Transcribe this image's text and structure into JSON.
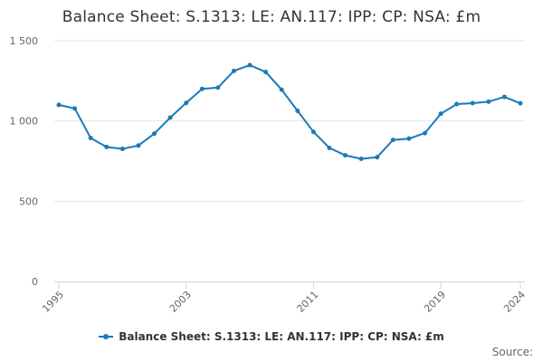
{
  "chart_data": {
    "type": "line",
    "title": "Balance Sheet: S.1313: LE: AN.117: IPP: CP: NSA: £m",
    "xlabel": "",
    "ylabel": "",
    "x": [
      1995,
      1996,
      1997,
      1998,
      1999,
      2000,
      2001,
      2002,
      2003,
      2004,
      2005,
      2006,
      2007,
      2008,
      2009,
      2010,
      2011,
      2012,
      2013,
      2014,
      2015,
      2016,
      2017,
      2018,
      2019,
      2020,
      2021,
      2022,
      2023,
      2024
    ],
    "x_ticks": [
      "1995",
      "2003",
      "2011",
      "2019",
      "2024"
    ],
    "ylim": [
      0,
      1500
    ],
    "y_ticks": [
      0,
      500,
      1000,
      1500
    ],
    "y_tick_labels": [
      "0",
      "500",
      "1 000",
      "1 500"
    ],
    "grid": true,
    "legend_position": "bottom-center",
    "series": [
      {
        "name": "Balance Sheet: S.1313: LE: AN.117: IPP: CP: NSA: £m",
        "color": "#1a7ab8",
        "values": [
          1100,
          1078,
          894,
          838,
          826,
          847,
          921,
          1021,
          1112,
          1200,
          1208,
          1312,
          1348,
          1305,
          1195,
          1063,
          932,
          832,
          786,
          764,
          774,
          882,
          890,
          924,
          1045,
          1105,
          1111,
          1120,
          1150,
          1110
        ]
      }
    ]
  },
  "footer": {
    "source_label": "Source:"
  }
}
